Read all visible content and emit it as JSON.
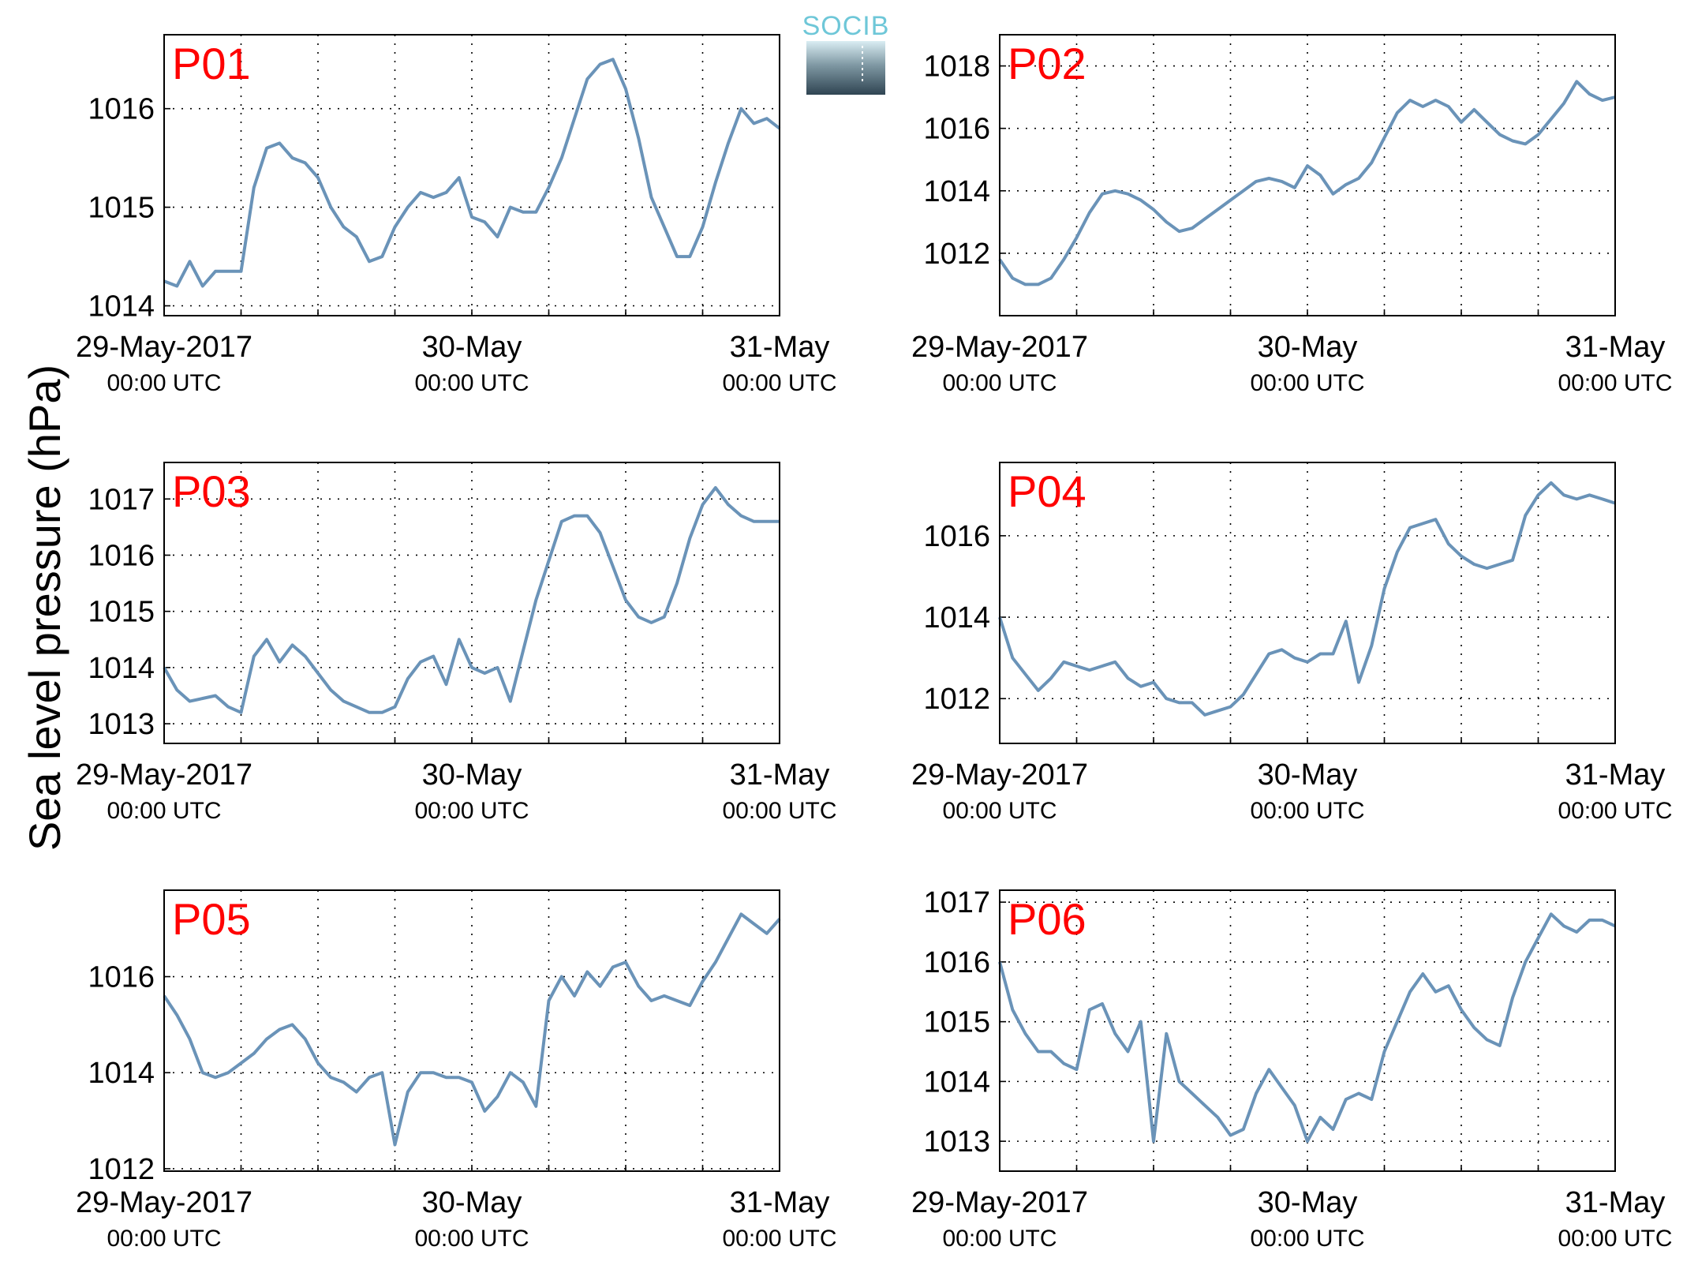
{
  "figure": {
    "ylabel": "Sea level pressure (hPa)",
    "logo_text": "SOCIB",
    "line_color": "#6a93b8",
    "panel_label_color": "#ff0000",
    "xticks": [
      {
        "main": "29-May-2017",
        "sub": "00:00 UTC"
      },
      {
        "main": "30-May",
        "sub": "00:00 UTC"
      },
      {
        "main": "31-May",
        "sub": "00:00 UTC"
      }
    ]
  },
  "chart_data": [
    {
      "type": "line",
      "panel_label": "P01",
      "ylabel": "Sea level pressure (hPa)",
      "x_unit": "hours since 29-May-2017 00:00 UTC",
      "xlim": [
        0,
        48
      ],
      "ylim": [
        1013.9,
        1016.75
      ],
      "yticks": [
        1014,
        1015,
        1016
      ],
      "grid": true,
      "x": [
        0,
        1,
        2,
        3,
        4,
        5,
        6,
        7,
        8,
        9,
        10,
        11,
        12,
        13,
        14,
        15,
        16,
        17,
        18,
        19,
        20,
        21,
        22,
        23,
        24,
        25,
        26,
        27,
        28,
        29,
        30,
        31,
        32,
        33,
        34,
        35,
        36,
        37,
        38,
        39,
        40,
        41,
        42,
        43,
        44,
        45,
        46,
        47,
        48
      ],
      "y": [
        1014.25,
        1014.2,
        1014.45,
        1014.2,
        1014.35,
        1014.35,
        1014.35,
        1015.2,
        1015.6,
        1015.65,
        1015.5,
        1015.45,
        1015.3,
        1015.0,
        1014.8,
        1014.7,
        1014.45,
        1014.5,
        1014.8,
        1015.0,
        1015.15,
        1015.1,
        1015.15,
        1015.3,
        1014.9,
        1014.85,
        1014.7,
        1015.0,
        1014.95,
        1014.95,
        1015.2,
        1015.5,
        1015.9,
        1016.3,
        1016.45,
        1016.5,
        1016.2,
        1015.7,
        1015.1,
        1014.8,
        1014.5,
        1014.5,
        1014.8,
        1015.25,
        1015.65,
        1016.0,
        1015.85,
        1015.9,
        1015.8
      ]
    },
    {
      "type": "line",
      "panel_label": "P02",
      "ylabel": "Sea level pressure (hPa)",
      "x_unit": "hours since 29-May-2017 00:00 UTC",
      "xlim": [
        0,
        48
      ],
      "ylim": [
        1010.0,
        1019.0
      ],
      "yticks": [
        1012,
        1014,
        1016,
        1018
      ],
      "grid": true,
      "x": [
        0,
        1,
        2,
        3,
        4,
        5,
        6,
        7,
        8,
        9,
        10,
        11,
        12,
        13,
        14,
        15,
        16,
        17,
        18,
        19,
        20,
        21,
        22,
        23,
        24,
        25,
        26,
        27,
        28,
        29,
        30,
        31,
        32,
        33,
        34,
        35,
        36,
        37,
        38,
        39,
        40,
        41,
        42,
        43,
        44,
        45,
        46,
        47,
        48
      ],
      "y": [
        1011.8,
        1011.2,
        1011.0,
        1011.0,
        1011.2,
        1011.8,
        1012.5,
        1013.3,
        1013.9,
        1014.0,
        1013.9,
        1013.7,
        1013.4,
        1013.0,
        1012.7,
        1012.8,
        1013.1,
        1013.4,
        1013.7,
        1014.0,
        1014.3,
        1014.4,
        1014.3,
        1014.1,
        1014.8,
        1014.5,
        1013.9,
        1014.2,
        1014.4,
        1014.9,
        1015.7,
        1016.5,
        1016.9,
        1016.7,
        1016.9,
        1016.7,
        1016.2,
        1016.6,
        1016.2,
        1015.8,
        1015.6,
        1015.5,
        1015.8,
        1016.3,
        1016.8,
        1017.5,
        1017.1,
        1016.9,
        1017.0
      ]
    },
    {
      "type": "line",
      "panel_label": "P03",
      "ylabel": "Sea level pressure (hPa)",
      "x_unit": "hours since 29-May-2017 00:00 UTC",
      "xlim": [
        0,
        48
      ],
      "ylim": [
        1012.65,
        1017.65
      ],
      "yticks": [
        1013,
        1014,
        1015,
        1016,
        1017
      ],
      "grid": true,
      "x": [
        0,
        1,
        2,
        3,
        4,
        5,
        6,
        7,
        8,
        9,
        10,
        11,
        12,
        13,
        14,
        15,
        16,
        17,
        18,
        19,
        20,
        21,
        22,
        23,
        24,
        25,
        26,
        27,
        28,
        29,
        30,
        31,
        32,
        33,
        34,
        35,
        36,
        37,
        38,
        39,
        40,
        41,
        42,
        43,
        44,
        45,
        46,
        47,
        48
      ],
      "y": [
        1014.0,
        1013.6,
        1013.4,
        1013.45,
        1013.5,
        1013.3,
        1013.2,
        1014.2,
        1014.5,
        1014.1,
        1014.4,
        1014.2,
        1013.9,
        1013.6,
        1013.4,
        1013.3,
        1013.2,
        1013.2,
        1013.3,
        1013.8,
        1014.1,
        1014.2,
        1013.7,
        1014.5,
        1014.0,
        1013.9,
        1014.0,
        1013.4,
        1014.3,
        1015.2,
        1015.9,
        1016.6,
        1016.7,
        1016.7,
        1016.4,
        1015.8,
        1015.2,
        1014.9,
        1014.8,
        1014.9,
        1015.5,
        1016.3,
        1016.9,
        1017.2,
        1016.9,
        1016.7,
        1016.6,
        1016.6,
        1016.6
      ]
    },
    {
      "type": "line",
      "panel_label": "P04",
      "ylabel": "Sea level pressure (hPa)",
      "x_unit": "hours since 29-May-2017 00:00 UTC",
      "xlim": [
        0,
        48
      ],
      "ylim": [
        1010.9,
        1017.8
      ],
      "yticks": [
        1012,
        1014,
        1016
      ],
      "grid": true,
      "x": [
        0,
        1,
        2,
        3,
        4,
        5,
        6,
        7,
        8,
        9,
        10,
        11,
        12,
        13,
        14,
        15,
        16,
        17,
        18,
        19,
        20,
        21,
        22,
        23,
        24,
        25,
        26,
        27,
        28,
        29,
        30,
        31,
        32,
        33,
        34,
        35,
        36,
        37,
        38,
        39,
        40,
        41,
        42,
        43,
        44,
        45,
        46,
        47,
        48
      ],
      "y": [
        1014.0,
        1013.0,
        1012.6,
        1012.2,
        1012.5,
        1012.9,
        1012.8,
        1012.7,
        1012.8,
        1012.9,
        1012.5,
        1012.3,
        1012.4,
        1012.0,
        1011.9,
        1011.9,
        1011.6,
        1011.7,
        1011.8,
        1012.1,
        1012.6,
        1013.1,
        1013.2,
        1013.0,
        1012.9,
        1013.1,
        1013.1,
        1013.9,
        1012.4,
        1013.3,
        1014.7,
        1015.6,
        1016.2,
        1016.3,
        1016.4,
        1015.8,
        1015.5,
        1015.3,
        1015.2,
        1015.3,
        1015.4,
        1016.5,
        1017.0,
        1017.3,
        1017.0,
        1016.9,
        1017.0,
        1016.9,
        1016.8
      ]
    },
    {
      "type": "line",
      "panel_label": "P05",
      "ylabel": "Sea level pressure (hPa)",
      "x_unit": "hours since 29-May-2017 00:00 UTC",
      "xlim": [
        0,
        48
      ],
      "ylim": [
        1011.95,
        1017.8
      ],
      "yticks": [
        1012,
        1014,
        1016
      ],
      "grid": true,
      "x": [
        0,
        1,
        2,
        3,
        4,
        5,
        6,
        7,
        8,
        9,
        10,
        11,
        12,
        13,
        14,
        15,
        16,
        17,
        18,
        19,
        20,
        21,
        22,
        23,
        24,
        25,
        26,
        27,
        28,
        29,
        30,
        31,
        32,
        33,
        34,
        35,
        36,
        37,
        38,
        39,
        40,
        41,
        42,
        43,
        44,
        45,
        46,
        47,
        48
      ],
      "y": [
        1015.6,
        1015.2,
        1014.7,
        1014.0,
        1013.9,
        1014.0,
        1014.2,
        1014.4,
        1014.7,
        1014.9,
        1015.0,
        1014.7,
        1014.2,
        1013.9,
        1013.8,
        1013.6,
        1013.9,
        1014.0,
        1012.5,
        1013.6,
        1014.0,
        1014.0,
        1013.9,
        1013.9,
        1013.8,
        1013.2,
        1013.5,
        1014.0,
        1013.8,
        1013.3,
        1015.5,
        1016.0,
        1015.6,
        1016.1,
        1015.8,
        1016.2,
        1016.3,
        1015.8,
        1015.5,
        1015.6,
        1015.5,
        1015.4,
        1015.9,
        1016.3,
        1016.8,
        1017.3,
        1017.1,
        1016.9,
        1017.2
      ]
    },
    {
      "type": "line",
      "panel_label": "P06",
      "ylabel": "Sea level pressure (hPa)",
      "x_unit": "hours since 29-May-2017 00:00 UTC",
      "xlim": [
        0,
        48
      ],
      "ylim": [
        1012.5,
        1017.2
      ],
      "yticks": [
        1013,
        1014,
        1015,
        1016,
        1017
      ],
      "grid": true,
      "x": [
        0,
        1,
        2,
        3,
        4,
        5,
        6,
        7,
        8,
        9,
        10,
        11,
        12,
        13,
        14,
        15,
        16,
        17,
        18,
        19,
        20,
        21,
        22,
        23,
        24,
        25,
        26,
        27,
        28,
        29,
        30,
        31,
        32,
        33,
        34,
        35,
        36,
        37,
        38,
        39,
        40,
        41,
        42,
        43,
        44,
        45,
        46,
        47,
        48
      ],
      "y": [
        1016.0,
        1015.2,
        1014.8,
        1014.5,
        1014.5,
        1014.3,
        1014.2,
        1015.2,
        1015.3,
        1014.8,
        1014.5,
        1015.0,
        1013.0,
        1014.8,
        1014.0,
        1013.8,
        1013.6,
        1013.4,
        1013.1,
        1013.2,
        1013.8,
        1014.2,
        1013.9,
        1013.6,
        1013.0,
        1013.4,
        1013.2,
        1013.7,
        1013.8,
        1013.7,
        1014.5,
        1015.0,
        1015.5,
        1015.8,
        1015.5,
        1015.6,
        1015.2,
        1014.9,
        1014.7,
        1014.6,
        1015.4,
        1016.0,
        1016.4,
        1016.8,
        1016.6,
        1016.5,
        1016.7,
        1016.7,
        1016.6
      ]
    }
  ]
}
